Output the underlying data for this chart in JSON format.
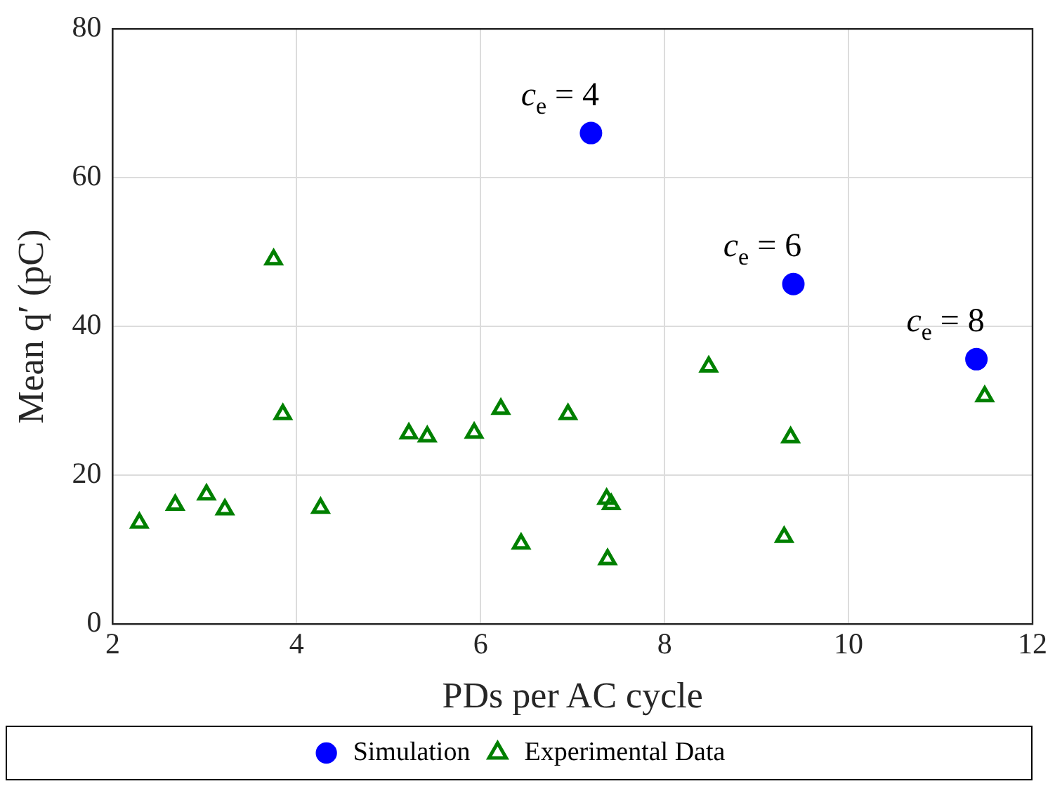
{
  "chart_data": {
    "type": "scatter",
    "xlabel": "PDs per AC cycle",
    "ylabel": "Mean q′ (pC)",
    "xlim": [
      2,
      12
    ],
    "xticks": [
      2,
      4,
      6,
      8,
      10,
      12
    ],
    "ylim": [
      0,
      80
    ],
    "yticks": [
      0,
      20,
      40,
      60,
      80
    ],
    "grid": true,
    "legend": "bottom",
    "series": [
      {
        "name": "Simulation",
        "color": "#0000ff",
        "marker": "circle",
        "x": [
          7.2,
          9.4,
          11.39
        ],
        "values": [
          66,
          45.7,
          35.6
        ]
      },
      {
        "name": "Experimental Data",
        "color": "#008000",
        "marker": "triangle",
        "x": [
          2.29,
          2.68,
          3.02,
          3.22,
          3.75,
          3.85,
          4.26,
          5.22,
          5.42,
          5.93,
          6.22,
          6.44,
          6.95,
          7.37,
          7.42,
          7.38,
          8.48,
          9.3,
          9.37,
          11.48
        ],
        "values": [
          13.6,
          16,
          17.4,
          15.4,
          49,
          28.2,
          15.6,
          25.6,
          25.2,
          25.7,
          28.9,
          10.8,
          28.2,
          16.8,
          16.1,
          8.7,
          34.6,
          11.7,
          25.1,
          30.6
        ]
      }
    ],
    "annotations": [
      {
        "text": "c$_{e}$ = 4",
        "x": 7.2,
        "y": 66
      },
      {
        "text": "c$_{e}$ = 6",
        "x": 9.4,
        "y": 45.7
      },
      {
        "text": "c$_{e}$ = 8",
        "x": 11.39,
        "y": 35.6
      }
    ]
  }
}
